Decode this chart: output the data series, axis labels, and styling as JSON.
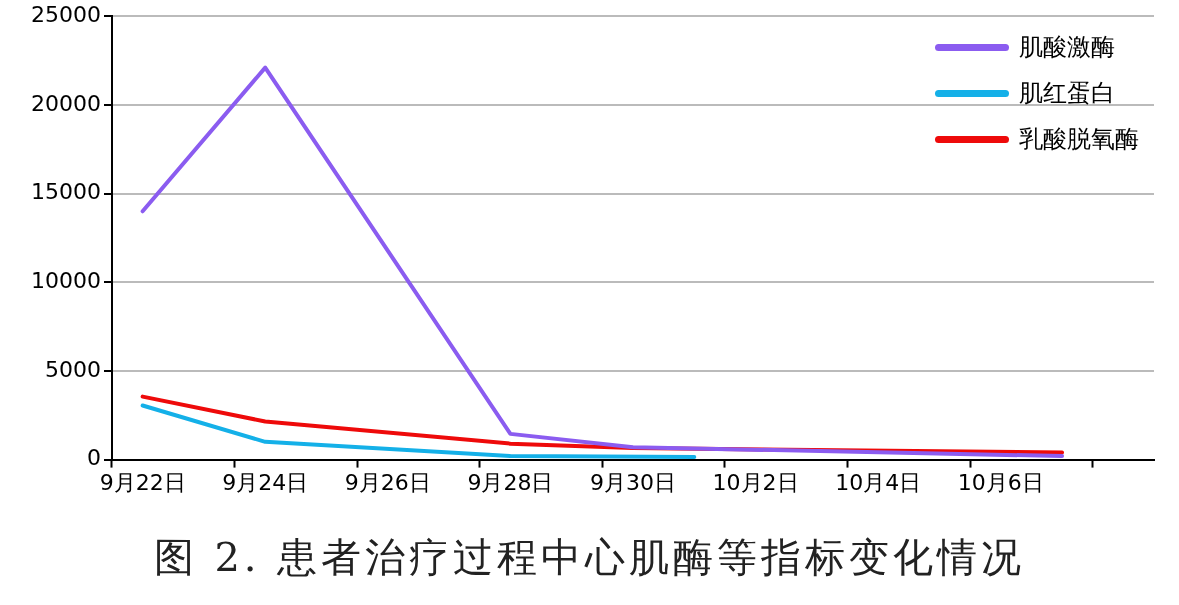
{
  "chart_data": {
    "type": "line",
    "title": "图 2. 患者治疗过程中心肌酶等指标变化情况",
    "categories": [
      "9月22日",
      null,
      "9月24日",
      null,
      "9月26日",
      null,
      "9月28日",
      null,
      "9月30日",
      null,
      "10月2日",
      null,
      "10月4日",
      null,
      "10月6日",
      null,
      null
    ],
    "ylim": [
      0,
      25000
    ],
    "yticks": [
      0,
      5000,
      10000,
      15000,
      20000,
      25000
    ],
    "grid": "y",
    "legend": "top right",
    "marker": "none",
    "line_style": "solid",
    "series": [
      {
        "name": "肌酸激酶",
        "color": "#8b5cf0",
        "values": [
          14000,
          null,
          22100,
          null,
          null,
          null,
          1450,
          null,
          700,
          null,
          null,
          null,
          null,
          null,
          null,
          200,
          null
        ]
      },
      {
        "name": "肌红蛋白",
        "color": "#14b0e8",
        "values": [
          3050,
          null,
          1000,
          null,
          null,
          null,
          200,
          null,
          null,
          150,
          null,
          null,
          null,
          null,
          null,
          null,
          null
        ]
      },
      {
        "name": "乳酸脱氧酶",
        "color": "#ee0a0a",
        "values": [
          3550,
          null,
          2150,
          null,
          null,
          null,
          900,
          null,
          650,
          null,
          null,
          null,
          null,
          null,
          null,
          400,
          null
        ]
      }
    ]
  }
}
